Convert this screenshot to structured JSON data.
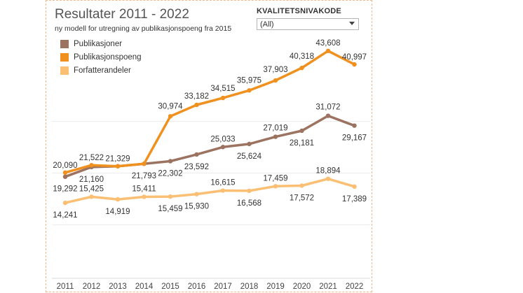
{
  "header": {
    "title": "Resultater 2011 - 2022",
    "subtitle": "ny modell for utregning av publikasjonspoeng fra 2015"
  },
  "filter": {
    "label": "KVALITETSNIVAKODE",
    "selected": "(All)"
  },
  "chart_data": {
    "type": "line",
    "x": [
      "2011",
      "2012",
      "2013",
      "2014",
      "2015",
      "2016",
      "2017",
      "2018",
      "2019",
      "2020",
      "2021",
      "2022"
    ],
    "series": [
      {
        "name": "Publikasjoner",
        "color": "#9c7360",
        "values": [
          19292,
          21160,
          21329,
          21793,
          22302,
          23592,
          25033,
          25624,
          27019,
          28181,
          31072,
          29167
        ],
        "labels": [
          "19,292",
          "21,160",
          "",
          "21,793",
          "22,302",
          "23,592",
          "25,033",
          "25,624",
          "27,019",
          "28,181",
          "31,072",
          "29,167"
        ]
      },
      {
        "name": "Publikasjonspoeng",
        "color": "#f0901e",
        "values": [
          20090,
          21522,
          21329,
          21793,
          30974,
          33182,
          34515,
          35975,
          37903,
          40318,
          43608,
          40997
        ],
        "labels": [
          "20,090",
          "21,522",
          "21,329",
          "",
          "30,974",
          "33,182",
          "34,515",
          "35,975",
          "37,903",
          "40,318",
          "43,608",
          "40,997"
        ]
      },
      {
        "name": "Forfatterandeler",
        "color": "#fbbf74",
        "values": [
          14241,
          15425,
          14919,
          15411,
          15459,
          15930,
          16615,
          16568,
          17459,
          17572,
          18894,
          17389
        ],
        "labels": [
          "14,241",
          "15,425",
          "14,919",
          "15,411",
          "15,459",
          "15,930",
          "16,615",
          "16,568",
          "17,459",
          "17,572",
          "18,894",
          "17,389"
        ]
      }
    ],
    "ylim": [
      0,
      46000
    ],
    "grid": true,
    "legend": "top-left"
  }
}
